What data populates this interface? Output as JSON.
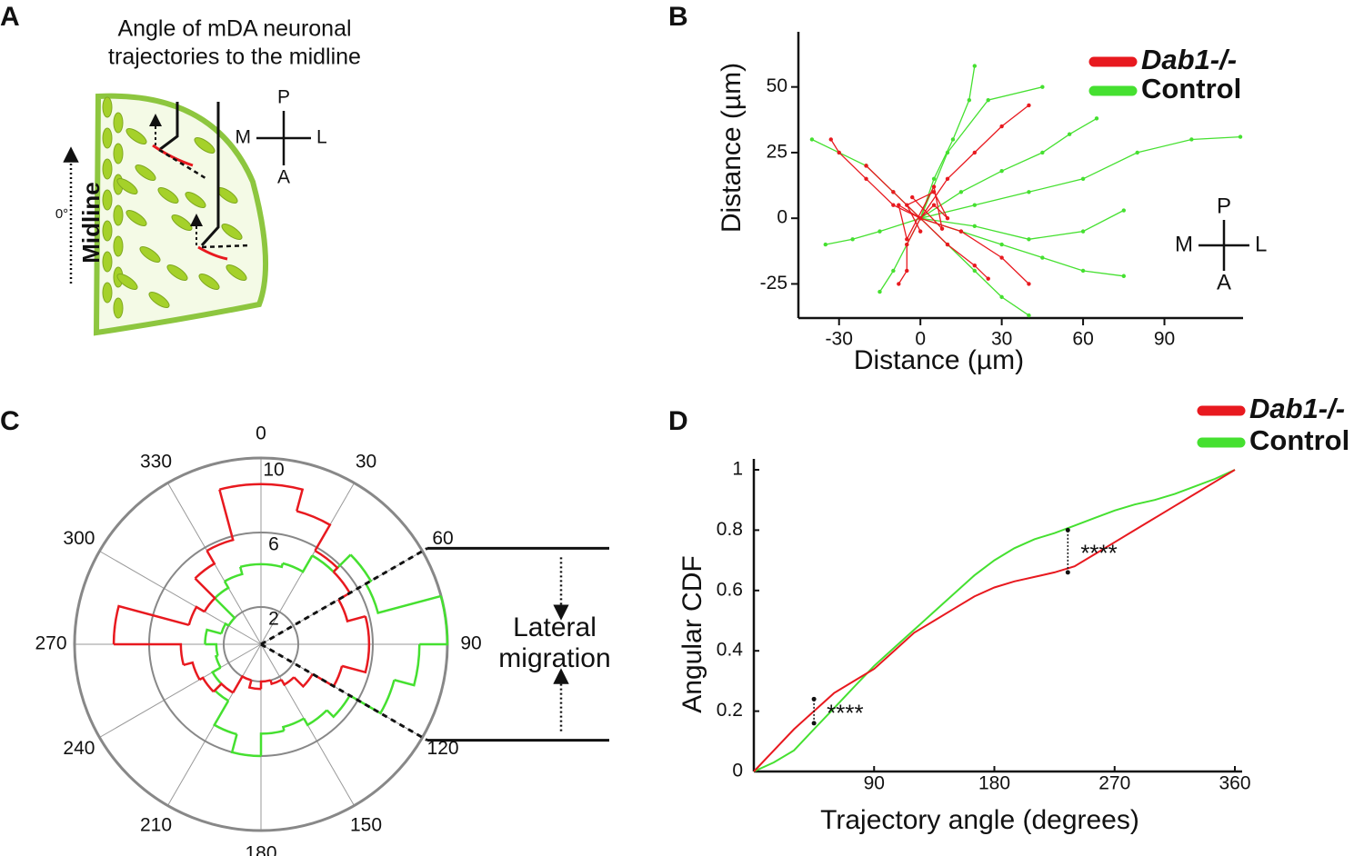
{
  "diagram_a": {
    "panel": "A",
    "title_lines": [
      "Angle of mDA neuronal",
      "trajectories to the midline"
    ],
    "midline": "Midline",
    "zero_angle": "0°",
    "compass": {
      "top": "P",
      "left": "M",
      "right": "L",
      "bottom": "A"
    }
  },
  "chart_data": [
    {
      "type": "trajectory",
      "panel": "B",
      "x_label": "Distance (µm)",
      "y_label": "Distance (µm)",
      "xlim": [
        -45,
        119
      ],
      "ylim": [
        -38,
        71
      ],
      "xticks": [
        -30,
        0,
        30,
        60,
        90
      ],
      "yticks": [
        -25,
        0,
        25,
        50
      ],
      "compass": {
        "top": "P",
        "left": "M",
        "right": "L",
        "bottom": "A"
      },
      "series": [
        {
          "name": "Control",
          "color": "#45e030",
          "tracks": [
            {
              "x": [
                0,
                20,
                40,
                60,
                80,
                100,
                118
              ],
              "y": [
                0,
                5,
                10,
                15,
                25,
                30,
                31
              ]
            },
            {
              "x": [
                0,
                15,
                30,
                45,
                60,
                75
              ],
              "y": [
                0,
                -5,
                -10,
                -15,
                -20,
                -22
              ]
            },
            {
              "x": [
                0,
                5,
                12,
                18,
                20
              ],
              "y": [
                0,
                15,
                30,
                45,
                58
              ]
            },
            {
              "x": [
                0,
                -10,
                -20,
                -30,
                -40
              ],
              "y": [
                0,
                10,
                20,
                25,
                30
              ]
            },
            {
              "x": [
                0,
                10,
                20,
                30,
                40
              ],
              "y": [
                0,
                -10,
                -20,
                -30,
                -37
              ]
            },
            {
              "x": [
                0,
                15,
                30,
                45,
                55,
                65
              ],
              "y": [
                0,
                10,
                18,
                25,
                32,
                38
              ]
            },
            {
              "x": [
                0,
                -5,
                -10,
                -15
              ],
              "y": [
                0,
                -10,
                -20,
                -28
              ]
            },
            {
              "x": [
                0,
                20,
                40,
                60,
                75
              ],
              "y": [
                0,
                -3,
                -8,
                -5,
                3
              ]
            },
            {
              "x": [
                0,
                -15,
                -25,
                -35
              ],
              "y": [
                0,
                -5,
                -8,
                -10
              ]
            },
            {
              "x": [
                0,
                10,
                25,
                45
              ],
              "y": [
                0,
                25,
                45,
                50
              ]
            }
          ]
        },
        {
          "name": "Dab1-/-",
          "color": "#e8191f",
          "tracks": [
            {
              "x": [
                0,
                -10,
                -20,
                -30,
                -33
              ],
              "y": [
                0,
                5,
                15,
                25,
                30
              ]
            },
            {
              "x": [
                0,
                10,
                20,
                30,
                40
              ],
              "y": [
                0,
                15,
                25,
                35,
                43
              ]
            },
            {
              "x": [
                0,
                15,
                30,
                40
              ],
              "y": [
                0,
                -5,
                -15,
                -25
              ]
            },
            {
              "x": [
                0,
                -5,
                -5,
                -8
              ],
              "y": [
                0,
                -10,
                -20,
                -25
              ]
            },
            {
              "x": [
                0,
                -10,
                -20
              ],
              "y": [
                0,
                10,
                20
              ]
            },
            {
              "x": [
                0,
                5,
                10,
                5,
                -5,
                0
              ],
              "y": [
                0,
                5,
                0,
                10,
                5,
                -5
              ]
            },
            {
              "x": [
                0,
                10,
                20,
                25
              ],
              "y": [
                0,
                -10,
                -18,
                -23
              ]
            },
            {
              "x": [
                0,
                -8,
                -5,
                5,
                8,
                -3
              ],
              "y": [
                0,
                5,
                -8,
                12,
                -4,
                8
              ]
            }
          ]
        }
      ]
    },
    {
      "type": "rose",
      "panel": "C",
      "rlim": [
        0,
        10
      ],
      "rticks": [
        2,
        6,
        10
      ],
      "thetaticks": [
        0,
        30,
        60,
        90,
        120,
        150,
        180,
        210,
        240,
        270,
        300,
        330
      ],
      "annotation": {
        "text": "Lateral migration",
        "angles": [
          60,
          120
        ]
      },
      "series": [
        {
          "name": "Control",
          "color": "#45e030",
          "values": [
            4.3,
            4.5,
            5.5,
            6.8,
            6.5,
            10,
            8.5,
            7.4,
            5.5,
            5,
            4.6,
            4.8,
            6,
            5,
            3.5,
            3,
            2.5,
            2.4,
            3,
            2.2,
            2,
            3.5,
            3.9,
            4.3
          ]
        },
        {
          "name": "Dab1-/-",
          "color": "#e8191f",
          "values": [
            8.6,
            7.4,
            5.8,
            5.5,
            4.8,
            5.8,
            5.8,
            4.5,
            3.2,
            2.5,
            2.2,
            2,
            2.4,
            2,
            3,
            3.6,
            3.8,
            4.3,
            7.9,
            4,
            3.5,
            5,
            5.8,
            8.6
          ]
        }
      ]
    },
    {
      "type": "line",
      "panel": "D",
      "x_label": "Trajectory angle (degrees)",
      "y_label": "Angular CDF",
      "xlim": [
        0,
        360
      ],
      "ylim": [
        0,
        1
      ],
      "xticks": [
        90,
        180,
        270,
        360
      ],
      "yticks": [
        0,
        0.2,
        0.4,
        0.6,
        0.8,
        1
      ],
      "x": [
        0,
        15,
        30,
        45,
        60,
        75,
        90,
        105,
        120,
        135,
        150,
        165,
        180,
        195,
        210,
        225,
        240,
        255,
        270,
        285,
        300,
        315,
        330,
        345,
        360
      ],
      "series": [
        {
          "name": "Dab1-/-",
          "color": "#e8191f",
          "values": [
            0,
            0.07,
            0.14,
            0.2,
            0.26,
            0.3,
            0.34,
            0.4,
            0.46,
            0.5,
            0.54,
            0.58,
            0.61,
            0.63,
            0.645,
            0.66,
            0.68,
            0.72,
            0.76,
            0.8,
            0.84,
            0.88,
            0.92,
            0.96,
            1
          ]
        },
        {
          "name": "Control",
          "color": "#45e030",
          "values": [
            0,
            0.03,
            0.07,
            0.14,
            0.21,
            0.28,
            0.35,
            0.41,
            0.47,
            0.53,
            0.59,
            0.65,
            0.7,
            0.74,
            0.77,
            0.79,
            0.815,
            0.84,
            0.865,
            0.885,
            0.9,
            0.92,
            0.945,
            0.97,
            1
          ]
        }
      ],
      "brackets": [
        {
          "x": 45,
          "y": [
            0.16,
            0.24
          ],
          "label": "****"
        },
        {
          "x": 235,
          "y": [
            0.66,
            0.8
          ],
          "label": "****"
        }
      ]
    }
  ]
}
